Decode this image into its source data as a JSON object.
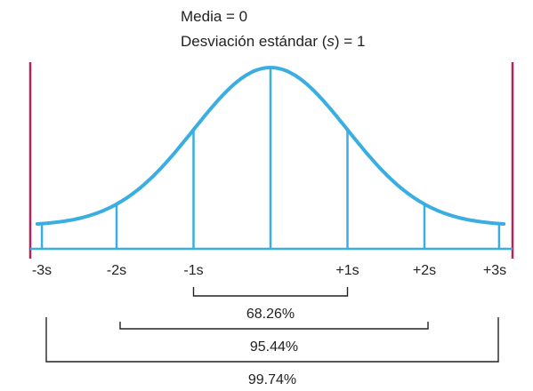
{
  "header": {
    "mean_line": "Media = 0",
    "sd_prefix": "Desviación estándar (",
    "sd_symbol": "s",
    "sd_suffix": ") = 1"
  },
  "curve": {
    "line_color": "#3aaee0",
    "boundary_color": "#b3245d",
    "bracket_color": "#222222"
  },
  "ticks": [
    {
      "value": -3,
      "label": "-3s"
    },
    {
      "value": -2,
      "label": "-2s"
    },
    {
      "value": -1,
      "label": "-1s"
    },
    {
      "value": 1,
      "label": "+1s"
    },
    {
      "value": 2,
      "label": "+2s"
    },
    {
      "value": 3,
      "label": "+3s"
    }
  ],
  "intervals": [
    {
      "from": -1,
      "to": 1,
      "label": "68.26%"
    },
    {
      "from": -2,
      "to": 2,
      "label": "95.44%"
    },
    {
      "from": -3,
      "to": 3,
      "label": "99.74%"
    }
  ]
}
